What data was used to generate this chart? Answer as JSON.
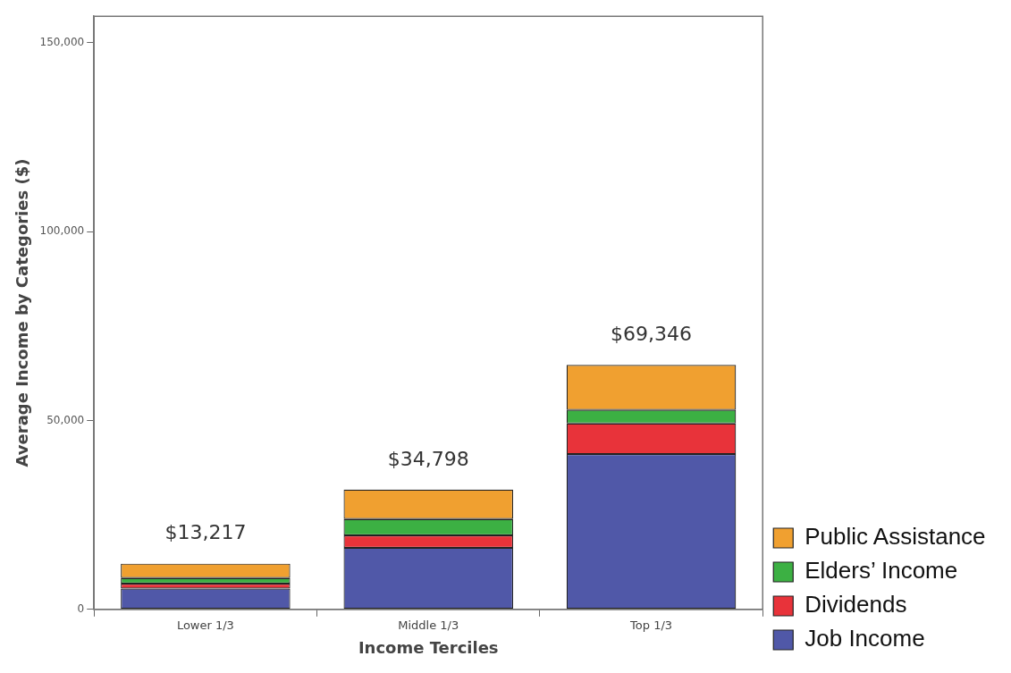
{
  "chart_data": {
    "type": "bar",
    "stacked": true,
    "xlabel": "Income Terciles",
    "ylabel": "Average Income by Categories ($)",
    "categories": [
      "Lower 1/3",
      "Middle 1/3",
      "Top 1/3"
    ],
    "series": [
      {
        "name": "Job Income",
        "color": "#5058a8",
        "values": [
          5500,
          16300,
          41100
        ]
      },
      {
        "name": "Dividends",
        "color": "#e8333a",
        "values": [
          1300,
          3300,
          8100
        ]
      },
      {
        "name": "Elders’ Income",
        "color": "#3cb043",
        "values": [
          1500,
          4300,
          3600
        ]
      },
      {
        "name": "Public Assistance",
        "color": "#f0a030",
        "values": [
          3800,
          7800,
          11900
        ]
      }
    ],
    "annotations": [
      {
        "text": "$13,217",
        "x": "Lower 1/3",
        "y": 12100
      },
      {
        "text": "$34,798",
        "x": "Middle 1/3",
        "y": 31700
      },
      {
        "text": "$69,346",
        "x": "Top 1/3",
        "y": 64700
      }
    ],
    "ylim": [
      0,
      157000
    ],
    "yticks": [
      {
        "value": 0,
        "label": "0"
      },
      {
        "value": 50000,
        "label": "50,000"
      },
      {
        "value": 100000,
        "label": "100,000"
      },
      {
        "value": 150000,
        "label": "150,000"
      }
    ],
    "grid": false,
    "legend": "bottom right"
  }
}
